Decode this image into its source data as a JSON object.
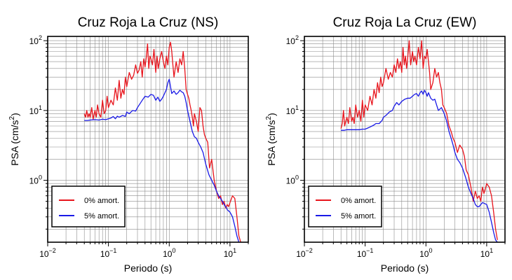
{
  "chart_data": [
    {
      "type": "line",
      "title": "Cruz Roja La Cruz (NS)",
      "xlabel": "Periodo (s)",
      "ylabel": "PSA (cm/s2)",
      "xscale": "log",
      "yscale": "log",
      "xlim": [
        0.01,
        20
      ],
      "ylim": [
        0.13,
        115
      ],
      "grid": true,
      "legend_position": "bottom-left",
      "x_ticks": [
        {
          "value": 0.01,
          "base": "10",
          "exp": "−2"
        },
        {
          "value": 0.1,
          "base": "10",
          "exp": "−1"
        },
        {
          "value": 1,
          "base": "10",
          "exp": "0"
        },
        {
          "value": 10,
          "base": "10",
          "exp": "1"
        }
      ],
      "y_ticks": [
        {
          "value": 1,
          "base": "10",
          "exp": "0"
        },
        {
          "value": 10,
          "base": "10",
          "exp": "1"
        },
        {
          "value": 100,
          "base": "10",
          "exp": "2"
        }
      ],
      "series": [
        {
          "name": "0% amort.",
          "color": "#e8141c",
          "x": [
            0.04,
            0.042,
            0.044,
            0.046,
            0.048,
            0.05,
            0.053,
            0.056,
            0.06,
            0.063,
            0.066,
            0.07,
            0.075,
            0.08,
            0.085,
            0.09,
            0.095,
            0.1,
            0.11,
            0.12,
            0.13,
            0.14,
            0.15,
            0.16,
            0.17,
            0.18,
            0.19,
            0.2,
            0.22,
            0.24,
            0.26,
            0.28,
            0.3,
            0.32,
            0.34,
            0.36,
            0.38,
            0.4,
            0.42,
            0.44,
            0.46,
            0.48,
            0.5,
            0.53,
            0.56,
            0.6,
            0.63,
            0.66,
            0.7,
            0.75,
            0.8,
            0.85,
            0.9,
            0.95,
            1.0,
            1.05,
            1.1,
            1.15,
            1.2,
            1.3,
            1.4,
            1.5,
            1.6,
            1.7,
            1.8,
            1.9,
            2.0,
            2.1,
            2.2,
            2.3,
            2.4,
            2.5,
            2.6,
            2.8,
            3.0,
            3.2,
            3.4,
            3.6,
            3.8,
            4.0,
            4.3,
            4.6,
            5.0,
            5.5,
            6.0,
            6.5,
            7.0,
            7.5,
            8.0,
            8.5,
            9.0,
            9.5,
            10.0,
            11.0,
            12.0,
            13.0,
            14.0,
            15.0
          ],
          "values": [
            9,
            8,
            10,
            8,
            9,
            8,
            11,
            7.5,
            10,
            8,
            12,
            9,
            8,
            14,
            9,
            10,
            16,
            11,
            14,
            12,
            21,
            14,
            27,
            15,
            20,
            17,
            30,
            22,
            35,
            28,
            32,
            45,
            34,
            38,
            50,
            30,
            55,
            42,
            58,
            90,
            40,
            60,
            55,
            45,
            75,
            35,
            60,
            40,
            55,
            70,
            50,
            40,
            60,
            45,
            80,
            95,
            70,
            45,
            30,
            50,
            35,
            55,
            45,
            70,
            40,
            20,
            17,
            15,
            12,
            10,
            8,
            6,
            9,
            7,
            5,
            11,
            10,
            6,
            4.5,
            4,
            3.5,
            1.5,
            2.0,
            1.0,
            0.7,
            0.55,
            0.6,
            0.45,
            0.5,
            0.4,
            0.45,
            0.42,
            0.48,
            0.6,
            0.55,
            0.3,
            0.16,
            0.13
          ]
        },
        {
          "name": "5% amort.",
          "color": "#1a1ae6",
          "x": [
            0.04,
            0.045,
            0.05,
            0.06,
            0.07,
            0.08,
            0.09,
            0.1,
            0.11,
            0.12,
            0.13,
            0.14,
            0.15,
            0.17,
            0.19,
            0.2,
            0.22,
            0.25,
            0.28,
            0.3,
            0.33,
            0.36,
            0.4,
            0.45,
            0.5,
            0.55,
            0.6,
            0.65,
            0.7,
            0.75,
            0.8,
            0.85,
            0.9,
            0.95,
            1.0,
            1.05,
            1.1,
            1.2,
            1.3,
            1.4,
            1.5,
            1.6,
            1.7,
            1.8,
            1.9,
            2.0,
            2.2,
            2.4,
            2.6,
            2.8,
            3.0,
            3.3,
            3.6,
            4.0,
            4.5,
            5.0,
            5.5,
            6.0,
            6.5,
            7.0,
            7.5,
            8.0,
            8.5,
            9.0,
            10.0,
            11.0,
            12.0,
            13.0,
            14.0,
            15.0
          ],
          "values": [
            7.2,
            7.2,
            7.3,
            7.4,
            7.3,
            7.5,
            7.4,
            7.6,
            7.8,
            8.2,
            7.6,
            8.3,
            8.0,
            8.5,
            8.2,
            9.5,
            9.0,
            10.0,
            9.8,
            11.0,
            12.5,
            14.0,
            16.0,
            15.5,
            17.0,
            16.5,
            14.0,
            15.5,
            13.5,
            14.5,
            16.0,
            18.0,
            20.0,
            25.0,
            28.0,
            22.0,
            17.5,
            19.0,
            17.0,
            18.0,
            19.5,
            18.5,
            18.0,
            16.0,
            13.0,
            10.0,
            7.0,
            5.0,
            4.2,
            4.0,
            3.5,
            3.0,
            2.5,
            1.7,
            1.2,
            1.0,
            0.85,
            0.7,
            0.6,
            0.55,
            0.5,
            0.45,
            0.42,
            0.38,
            0.35,
            0.3,
            0.22,
            0.16,
            0.13,
            0.12
          ]
        }
      ]
    },
    {
      "type": "line",
      "title": "Cruz Roja La Cruz (EW)",
      "xlabel": "Periodo (s)",
      "ylabel": "PSA (cm/s2)",
      "xscale": "log",
      "yscale": "log",
      "xlim": [
        0.01,
        20
      ],
      "ylim": [
        0.13,
        115
      ],
      "grid": true,
      "legend_position": "bottom-left",
      "x_ticks": [
        {
          "value": 0.01,
          "base": "10",
          "exp": "−2"
        },
        {
          "value": 0.1,
          "base": "10",
          "exp": "−1"
        },
        {
          "value": 1,
          "base": "10",
          "exp": "0"
        },
        {
          "value": 10,
          "base": "10",
          "exp": "1"
        }
      ],
      "y_ticks": [
        {
          "value": 1,
          "base": "10",
          "exp": "0"
        },
        {
          "value": 10,
          "base": "10",
          "exp": "1"
        },
        {
          "value": 100,
          "base": "10",
          "exp": "2"
        }
      ],
      "series": [
        {
          "name": "0% amort.",
          "color": "#e8141c",
          "x": [
            0.04,
            0.042,
            0.044,
            0.046,
            0.048,
            0.05,
            0.053,
            0.056,
            0.06,
            0.063,
            0.066,
            0.07,
            0.075,
            0.08,
            0.085,
            0.09,
            0.095,
            0.1,
            0.11,
            0.12,
            0.13,
            0.14,
            0.15,
            0.16,
            0.17,
            0.18,
            0.19,
            0.2,
            0.22,
            0.24,
            0.26,
            0.28,
            0.3,
            0.32,
            0.34,
            0.36,
            0.38,
            0.4,
            0.42,
            0.44,
            0.46,
            0.48,
            0.5,
            0.53,
            0.56,
            0.6,
            0.63,
            0.66,
            0.7,
            0.75,
            0.8,
            0.85,
            0.9,
            0.95,
            1.0,
            1.05,
            1.1,
            1.15,
            1.2,
            1.3,
            1.4,
            1.5,
            1.6,
            1.7,
            1.8,
            1.9,
            2.0,
            2.2,
            2.4,
            2.6,
            2.8,
            3.0,
            3.3,
            3.6,
            4.0,
            4.3,
            4.6,
            5.0,
            5.5,
            6.0,
            6.5,
            7.0,
            7.5,
            8.0,
            8.5,
            9.0,
            9.5,
            10.0,
            11.0,
            12.0,
            13.0,
            14.0,
            15.0
          ],
          "values": [
            5.5,
            6.5,
            10,
            6,
            7,
            8,
            6.5,
            11,
            7,
            8,
            6.5,
            12,
            8,
            10,
            7,
            14,
            8,
            12,
            10,
            16,
            12,
            20,
            15,
            25,
            18,
            30,
            22,
            25,
            40,
            28,
            35,
            30,
            45,
            35,
            55,
            40,
            50,
            35,
            80,
            45,
            60,
            40,
            55,
            100,
            45,
            70,
            50,
            60,
            45,
            80,
            55,
            100,
            40,
            60,
            55,
            75,
            50,
            35,
            20,
            25,
            40,
            30,
            35,
            25,
            20,
            12,
            11,
            9,
            6,
            5,
            4,
            3.5,
            2.5,
            3.2,
            2.8,
            2.2,
            1.4,
            1.2,
            0.8,
            0.5,
            0.7,
            0.55,
            0.6,
            0.5,
            0.8,
            0.65,
            0.75,
            0.9,
            0.8,
            0.6,
            0.35,
            0.2,
            0.14
          ]
        },
        {
          "name": "5% amort.",
          "color": "#1a1ae6",
          "x": [
            0.04,
            0.045,
            0.05,
            0.06,
            0.07,
            0.08,
            0.09,
            0.1,
            0.11,
            0.12,
            0.13,
            0.14,
            0.15,
            0.17,
            0.19,
            0.2,
            0.22,
            0.25,
            0.28,
            0.3,
            0.33,
            0.36,
            0.4,
            0.45,
            0.5,
            0.55,
            0.6,
            0.65,
            0.7,
            0.75,
            0.8,
            0.85,
            0.9,
            0.95,
            1.0,
            1.05,
            1.1,
            1.2,
            1.3,
            1.4,
            1.5,
            1.6,
            1.8,
            2.0,
            2.2,
            2.4,
            2.6,
            2.8,
            3.0,
            3.3,
            3.6,
            4.0,
            4.5,
            5.0,
            5.5,
            6.0,
            6.5,
            7.0,
            7.5,
            8.0,
            8.5,
            9.0,
            10.0,
            11.0,
            12.0,
            13.0,
            14.0,
            15.0
          ],
          "values": [
            5.2,
            5.2,
            5.3,
            5.3,
            5.3,
            5.3,
            5.4,
            5.4,
            5.6,
            5.8,
            6.0,
            6.2,
            6.5,
            6.5,
            7.2,
            8.0,
            8.5,
            9.5,
            10.0,
            11.5,
            13.0,
            12.0,
            13.5,
            14.5,
            15.0,
            15.0,
            16.0,
            17.0,
            17.5,
            16.0,
            18.0,
            19.0,
            17.0,
            19.5,
            18.0,
            16.0,
            18.0,
            15.0,
            14.0,
            14.5,
            12.0,
            10.0,
            11.0,
            9.0,
            7.0,
            5.0,
            4.0,
            3.2,
            2.5,
            2.0,
            1.8,
            1.5,
            1.1,
            0.8,
            0.65,
            0.55,
            0.45,
            0.42,
            0.42,
            0.45,
            0.48,
            0.47,
            0.45,
            0.35,
            0.25,
            0.18,
            0.14,
            0.13
          ]
        }
      ]
    }
  ]
}
